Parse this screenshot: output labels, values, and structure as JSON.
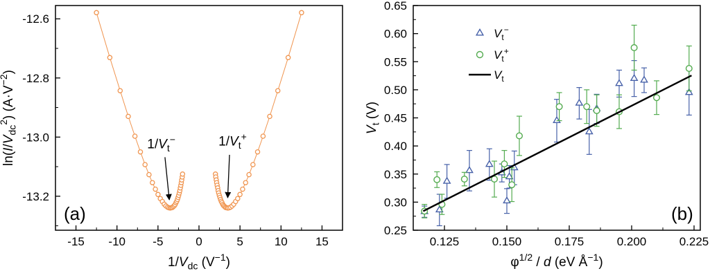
{
  "figure": {
    "background": "#ffffff"
  },
  "chart_data": [
    {
      "id": "panel_a",
      "type": "line",
      "panel_label": "(a)",
      "marker_color": "#f09550",
      "xlim": [
        -17.5,
        17.5
      ],
      "ylim": [
        -13.315,
        -12.555
      ],
      "xticks": [
        -15,
        -10,
        -5,
        0,
        5,
        10,
        15
      ],
      "xtick_labels": [
        "-15",
        "-10",
        "-5",
        "0",
        "5",
        "10",
        "15"
      ],
      "yticks": [
        -13.2,
        -13.0,
        -12.8,
        -12.6
      ],
      "ytick_labels": [
        "-13.2",
        "-13.0",
        "-12.8",
        "-12.6"
      ],
      "xlabel_segments": [
        {
          "t": "1/"
        },
        {
          "t": "V",
          "i": 1
        },
        {
          "t": "dc",
          "sub": 1
        },
        {
          "t": " (V"
        },
        {
          "t": "−1",
          "sup": 1
        },
        {
          "t": ")"
        }
      ],
      "ylabel_segments": [
        {
          "t": "ln("
        },
        {
          "t": "I",
          "i": 1
        },
        {
          "t": "/"
        },
        {
          "t": "V",
          "i": 1
        },
        {
          "t": "dc",
          "sub": 1
        },
        {
          "t": "2",
          "sup": 1
        },
        {
          "t": ") (A·V"
        },
        {
          "t": "−2",
          "sup": 1
        },
        {
          "t": ")"
        }
      ],
      "branches": [
        {
          "name": "negative-bias",
          "points": [
            [
              -12.5,
              -12.579
            ],
            [
              -10.87,
              -12.731
            ],
            [
              -9.615,
              -12.843
            ],
            [
              -8.621,
              -12.93
            ],
            [
              -7.813,
              -12.997
            ],
            [
              -7.143,
              -13.05
            ],
            [
              -6.579,
              -13.093
            ],
            [
              -6.098,
              -13.127
            ],
            [
              -5.682,
              -13.154
            ],
            [
              -5.319,
              -13.176
            ],
            [
              -5.0,
              -13.194
            ],
            [
              -4.717,
              -13.208
            ],
            [
              -4.464,
              -13.218
            ],
            [
              -4.237,
              -13.227
            ],
            [
              -4.032,
              -13.233
            ],
            [
              -3.846,
              -13.237
            ],
            [
              -3.676,
              -13.239
            ],
            [
              -3.521,
              -13.24
            ],
            [
              -3.378,
              -13.239
            ],
            [
              -3.247,
              -13.238
            ],
            [
              -3.125,
              -13.235
            ],
            [
              -3.012,
              -13.232
            ],
            [
              -2.907,
              -13.228
            ],
            [
              -2.809,
              -13.222
            ],
            [
              -2.717,
              -13.217
            ],
            [
              -2.632,
              -13.211
            ],
            [
              -2.551,
              -13.204
            ],
            [
              -2.475,
              -13.197
            ],
            [
              -2.404,
              -13.189
            ],
            [
              -2.336,
              -13.181
            ],
            [
              -2.273,
              -13.172
            ],
            [
              -2.212,
              -13.163
            ],
            [
              -2.155,
              -13.154
            ],
            [
              -2.101,
              -13.145
            ],
            [
              -2.049,
              -13.135
            ],
            [
              -2.0,
              -13.125
            ]
          ]
        },
        {
          "name": "positive-bias",
          "points": [
            [
              2.0,
              -13.125
            ],
            [
              2.049,
              -13.135
            ],
            [
              2.101,
              -13.145
            ],
            [
              2.155,
              -13.154
            ],
            [
              2.212,
              -13.163
            ],
            [
              2.273,
              -13.172
            ],
            [
              2.336,
              -13.181
            ],
            [
              2.404,
              -13.189
            ],
            [
              2.475,
              -13.197
            ],
            [
              2.551,
              -13.204
            ],
            [
              2.632,
              -13.211
            ],
            [
              2.717,
              -13.217
            ],
            [
              2.809,
              -13.222
            ],
            [
              2.907,
              -13.228
            ],
            [
              3.012,
              -13.232
            ],
            [
              3.125,
              -13.235
            ],
            [
              3.247,
              -13.238
            ],
            [
              3.378,
              -13.239
            ],
            [
              3.521,
              -13.24
            ],
            [
              3.676,
              -13.239
            ],
            [
              3.846,
              -13.237
            ],
            [
              4.032,
              -13.233
            ],
            [
              4.237,
              -13.227
            ],
            [
              4.464,
              -13.218
            ],
            [
              4.717,
              -13.208
            ],
            [
              5.0,
              -13.194
            ],
            [
              5.319,
              -13.176
            ],
            [
              5.682,
              -13.154
            ],
            [
              6.098,
              -13.127
            ],
            [
              6.579,
              -13.093
            ],
            [
              7.143,
              -13.05
            ],
            [
              7.813,
              -12.997
            ],
            [
              8.621,
              -12.93
            ],
            [
              9.615,
              -12.843
            ],
            [
              10.87,
              -12.731
            ],
            [
              12.5,
              -12.579
            ]
          ]
        }
      ],
      "annotations": [
        {
          "name": "vt-minus",
          "segments": [
            {
              "t": "1/"
            },
            {
              "t": "V",
              "i": 1
            },
            {
              "t": "t",
              "sub": 1
            },
            {
              "t": "−",
              "sup": 1
            }
          ],
          "text_at": [
            -4.6,
            -13.038
          ],
          "arrow": [
            -4.15,
            -13.068,
            -3.62,
            -13.212
          ]
        },
        {
          "name": "vt-plus",
          "segments": [
            {
              "t": "1/"
            },
            {
              "t": "V",
              "i": 1
            },
            {
              "t": "t",
              "sub": 1
            },
            {
              "t": "+",
              "sup": 1
            }
          ],
          "text_at": [
            4.1,
            -13.028
          ],
          "arrow": [
            3.72,
            -13.06,
            3.5,
            -13.205
          ]
        }
      ]
    },
    {
      "id": "panel_b",
      "type": "scatter",
      "panel_label": "(b)",
      "xlim": [
        0.1125,
        0.2275
      ],
      "ylim": [
        0.25,
        0.65
      ],
      "xticks": [
        0.125,
        0.15,
        0.175,
        0.2,
        0.225
      ],
      "xtick_labels": [
        "0.125",
        "0.150",
        "0.175",
        "0.200",
        "0.225"
      ],
      "yticks": [
        0.25,
        0.3,
        0.35,
        0.4,
        0.45,
        0.5,
        0.55,
        0.6,
        0.65
      ],
      "ytick_labels": [
        "0.25",
        "0.30",
        "0.35",
        "0.40",
        "0.45",
        "0.50",
        "0.55",
        "0.60",
        "0.65"
      ],
      "xlabel_segments": [
        {
          "t": "φ"
        },
        {
          "t": "1/2",
          "sup": 1
        },
        {
          "t": " / "
        },
        {
          "t": "d",
          "i": 1
        },
        {
          "t": " (eV Å"
        },
        {
          "t": "−1",
          "sup": 1
        },
        {
          "t": ")"
        }
      ],
      "ylabel_segments": [
        {
          "t": "V",
          "i": 1
        },
        {
          "t": "t",
          "sub": 1
        },
        {
          "t": " (V)"
        }
      ],
      "series": [
        {
          "name": "vt-minus",
          "legend_segments": [
            {
              "t": "V",
              "i": 1
            },
            {
              "t": "t",
              "sub": 1
            },
            {
              "t": "−",
              "sup": 1
            }
          ],
          "marker": "triangle",
          "color": "#4660a8",
          "points": [
            [
              0.117,
              0.283,
              0.01
            ],
            [
              0.123,
              0.286,
              0.028
            ],
            [
              0.126,
              0.337,
              0.03
            ],
            [
              0.135,
              0.356,
              0.036
            ],
            [
              0.143,
              0.367,
              0.028
            ],
            [
              0.148,
              0.352,
              0.016
            ],
            [
              0.15,
              0.302,
              0.022
            ],
            [
              0.151,
              0.345,
              0.02
            ],
            [
              0.153,
              0.361,
              0.03
            ],
            [
              0.17,
              0.445,
              0.038
            ],
            [
              0.179,
              0.476,
              0.028
            ],
            [
              0.183,
              0.425,
              0.04
            ],
            [
              0.186,
              0.466,
              0.026
            ],
            [
              0.195,
              0.511,
              0.024
            ],
            [
              0.201,
              0.52,
              0.032
            ],
            [
              0.205,
              0.517,
              0.022
            ],
            [
              0.223,
              0.495,
              0.04
            ]
          ]
        },
        {
          "name": "vt-plus",
          "legend_segments": [
            {
              "t": "V",
              "i": 1
            },
            {
              "t": "t",
              "sub": 1
            },
            {
              "t": "+",
              "sup": 1
            }
          ],
          "marker": "circle",
          "color": "#53ab4f",
          "points": [
            [
              0.117,
              0.284,
              0.012
            ],
            [
              0.122,
              0.34,
              0.014
            ],
            [
              0.124,
              0.296,
              0.018
            ],
            [
              0.133,
              0.341,
              0.012
            ],
            [
              0.145,
              0.341,
              0.032
            ],
            [
              0.149,
              0.368,
              0.024
            ],
            [
              0.152,
              0.331,
              0.03
            ],
            [
              0.155,
              0.418,
              0.035
            ],
            [
              0.171,
              0.47,
              0.025
            ],
            [
              0.182,
              0.47,
              0.03
            ],
            [
              0.186,
              0.463,
              0.028
            ],
            [
              0.195,
              0.461,
              0.03
            ],
            [
              0.201,
              0.575,
              0.04
            ],
            [
              0.21,
              0.486,
              0.03
            ],
            [
              0.223,
              0.538,
              0.04
            ]
          ]
        },
        {
          "name": "vt-fit",
          "legend_segments": [
            {
              "t": "V",
              "i": 1
            },
            {
              "t": "t",
              "sub": 1
            }
          ],
          "marker": "line",
          "color": "#000000",
          "line_points": [
            [
              0.1165,
              0.284
            ],
            [
              0.224,
              0.5255
            ]
          ]
        }
      ]
    }
  ]
}
